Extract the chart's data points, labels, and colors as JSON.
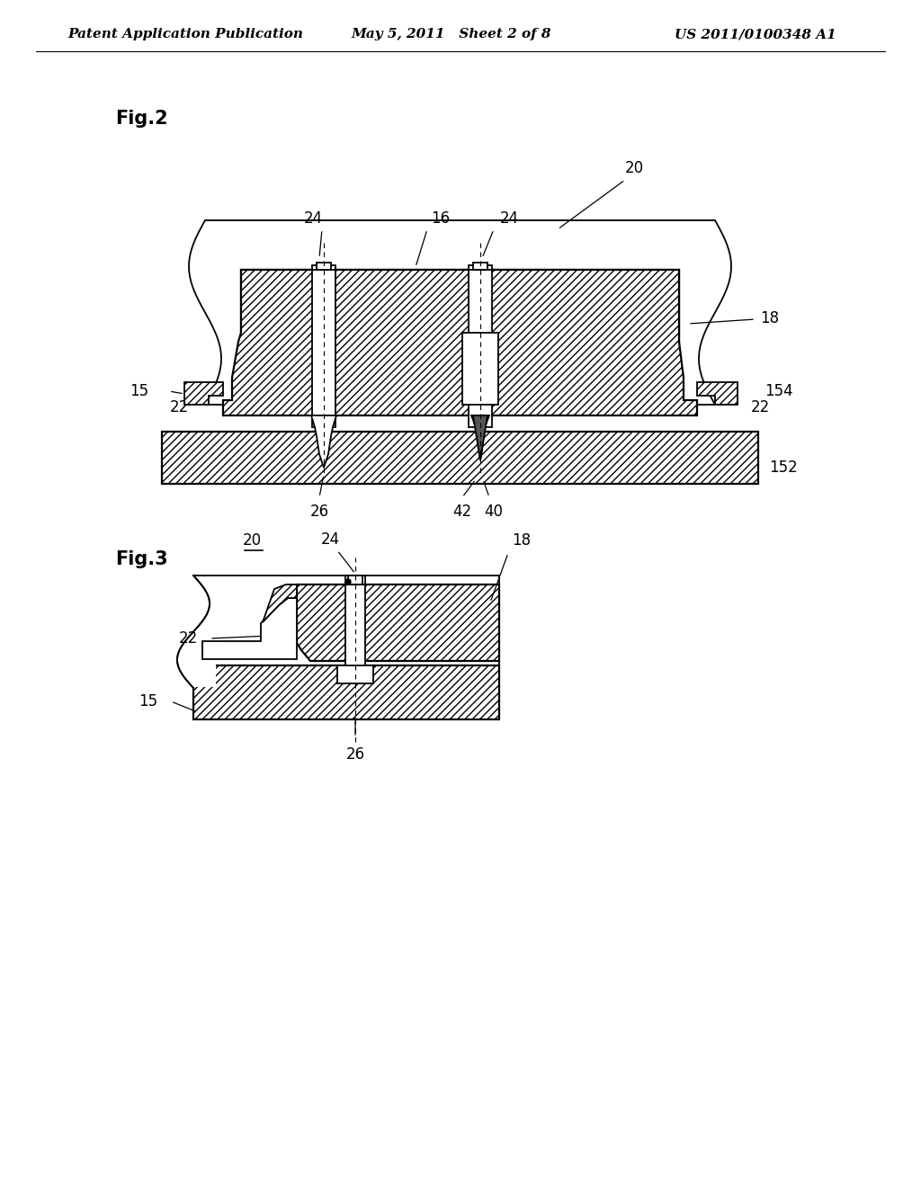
{
  "header_left": "Patent Application Publication",
  "header_mid": "May 5, 2011   Sheet 2 of 8",
  "header_right": "US 2011/0100348 A1",
  "fig2_label": "Fig.2",
  "fig3_label": "Fig.3",
  "bg_color": "#ffffff",
  "label_fontsize": 12,
  "header_fontsize": 11
}
